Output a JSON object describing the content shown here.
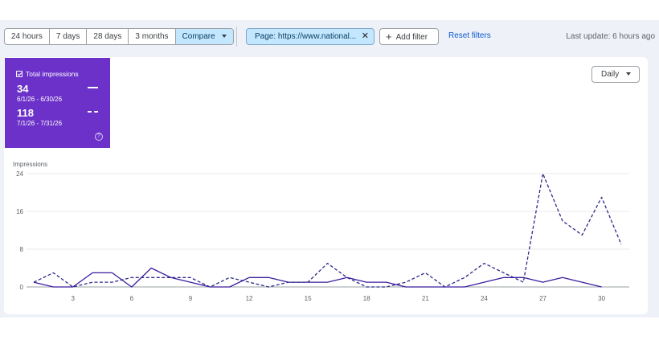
{
  "date_range": {
    "options": [
      "24 hours",
      "7 days",
      "28 days",
      "3 months"
    ],
    "compare_label": "Compare"
  },
  "filter_chip": {
    "label": "Page: https://www.national...",
    "close_icon": "close-icon"
  },
  "add_filter": {
    "label": "Add filter",
    "icon": "plus-icon"
  },
  "reset_filters": "Reset filters",
  "last_update": "Last update: 6 hours ago",
  "metric_card": {
    "title": "Total impressions",
    "color": "#6b31c9",
    "current": {
      "value": "34",
      "range": "6/1/26 - 6/30/26"
    },
    "previous": {
      "value": "118",
      "range": "7/1/26 - 7/31/26"
    }
  },
  "granularity": "Daily",
  "chart_data": {
    "type": "line",
    "ylabel": "Impressions",
    "ylim": [
      0,
      24
    ],
    "yticks": [
      0,
      8,
      16,
      24
    ],
    "xticks": [
      3,
      6,
      9,
      12,
      15,
      18,
      21,
      24,
      27,
      30
    ],
    "x": [
      1,
      2,
      3,
      4,
      5,
      6,
      7,
      8,
      9,
      10,
      11,
      12,
      13,
      14,
      15,
      16,
      17,
      18,
      19,
      20,
      21,
      22,
      23,
      24,
      25,
      26,
      27,
      28,
      29,
      30,
      31
    ],
    "grid": true,
    "series": [
      {
        "style": "solid",
        "color": "#3b1c9e",
        "values": [
          1,
          0,
          0,
          3,
          3,
          0,
          4,
          2,
          1,
          0,
          0,
          2,
          2,
          1,
          1,
          1,
          2,
          1,
          1,
          0,
          0,
          0,
          0,
          1,
          2,
          2,
          1,
          2,
          1,
          0,
          null
        ]
      },
      {
        "style": "dashed",
        "color": "#2d2a8a",
        "values": [
          1,
          3,
          0,
          1,
          1,
          2,
          2,
          2,
          2,
          0,
          2,
          1,
          0,
          1,
          1,
          5,
          2,
          0,
          0,
          1,
          3,
          0,
          2,
          5,
          3,
          1,
          24,
          14,
          11,
          19,
          9
        ]
      }
    ]
  }
}
